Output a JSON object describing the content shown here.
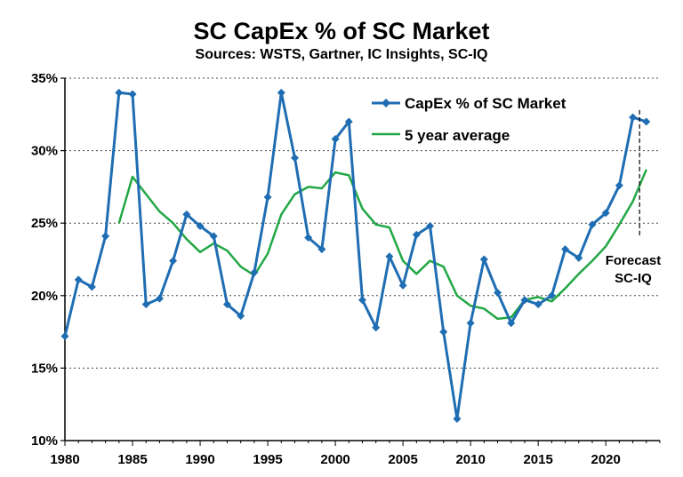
{
  "chart_data": {
    "type": "line",
    "title": "SC CapEx % of SC Market",
    "subtitle": "Sources: WSTS, Gartner, IC Insights, SC-IQ",
    "xlim": [
      1980,
      2024
    ],
    "ylim": [
      10,
      35
    ],
    "x_ticks": [
      1980,
      1985,
      1990,
      1995,
      2000,
      2005,
      2010,
      2015,
      2020
    ],
    "x_tick_labels": [
      "1980",
      "1985",
      "1990",
      "1995",
      "2000",
      "2005",
      "2010",
      "2015",
      "2020"
    ],
    "y_ticks": [
      10,
      15,
      20,
      25,
      30,
      35
    ],
    "y_tick_labels": [
      "10%",
      "15%",
      "20%",
      "25%",
      "30%",
      "35%"
    ],
    "grid": "horizontal dotted",
    "legend_position": "top-right",
    "series": [
      {
        "name": "CapEx % of SC Market",
        "color": "#1f6db3",
        "marker": "diamond",
        "x": [
          1980,
          1981,
          1982,
          1983,
          1984,
          1985,
          1986,
          1987,
          1988,
          1989,
          1990,
          1991,
          1992,
          1993,
          1994,
          1995,
          1996,
          1997,
          1998,
          1999,
          2000,
          2001,
          2002,
          2003,
          2004,
          2005,
          2006,
          2007,
          2008,
          2009,
          2010,
          2011,
          2012,
          2013,
          2014,
          2015,
          2016,
          2017,
          2018,
          2019,
          2020,
          2021,
          2022,
          2023
        ],
        "values": [
          17.2,
          21.1,
          20.6,
          24.1,
          34.0,
          33.9,
          19.4,
          19.8,
          22.4,
          25.6,
          24.8,
          24.1,
          19.4,
          18.6,
          21.6,
          26.8,
          34.0,
          29.5,
          24.0,
          23.2,
          30.8,
          32.0,
          19.7,
          17.8,
          22.7,
          20.7,
          24.2,
          24.8,
          17.5,
          11.5,
          18.1,
          22.5,
          20.2,
          18.1,
          19.7,
          19.4,
          20.0,
          23.2,
          22.6,
          24.9,
          25.7,
          27.6,
          32.3,
          32.0
        ]
      },
      {
        "name": "5 year average",
        "color": "#22a745",
        "marker": "none",
        "x": [
          1984,
          1985,
          1986,
          1987,
          1988,
          1989,
          1990,
          1991,
          1992,
          1993,
          1994,
          1995,
          1996,
          1997,
          1998,
          1999,
          2000,
          2001,
          2002,
          2003,
          2004,
          2005,
          2006,
          2007,
          2008,
          2009,
          2010,
          2011,
          2012,
          2013,
          2014,
          2015,
          2016,
          2017,
          2018,
          2019,
          2020,
          2021,
          2022,
          2023
        ],
        "values": [
          25.0,
          28.2,
          27.0,
          25.8,
          25.0,
          23.9,
          23.0,
          23.6,
          23.1,
          22.0,
          21.4,
          22.9,
          25.6,
          27.0,
          27.5,
          27.4,
          28.5,
          28.3,
          26.0,
          24.9,
          24.7,
          22.4,
          21.5,
          22.4,
          22.0,
          20.0,
          19.3,
          19.1,
          18.4,
          18.5,
          19.7,
          19.9,
          19.6,
          20.5,
          21.5,
          22.4,
          23.4,
          24.9,
          26.5,
          28.7
        ]
      }
    ],
    "annotation": {
      "lines": [
        "Forecast",
        "SC-IQ"
      ],
      "x": 2022.5
    }
  }
}
